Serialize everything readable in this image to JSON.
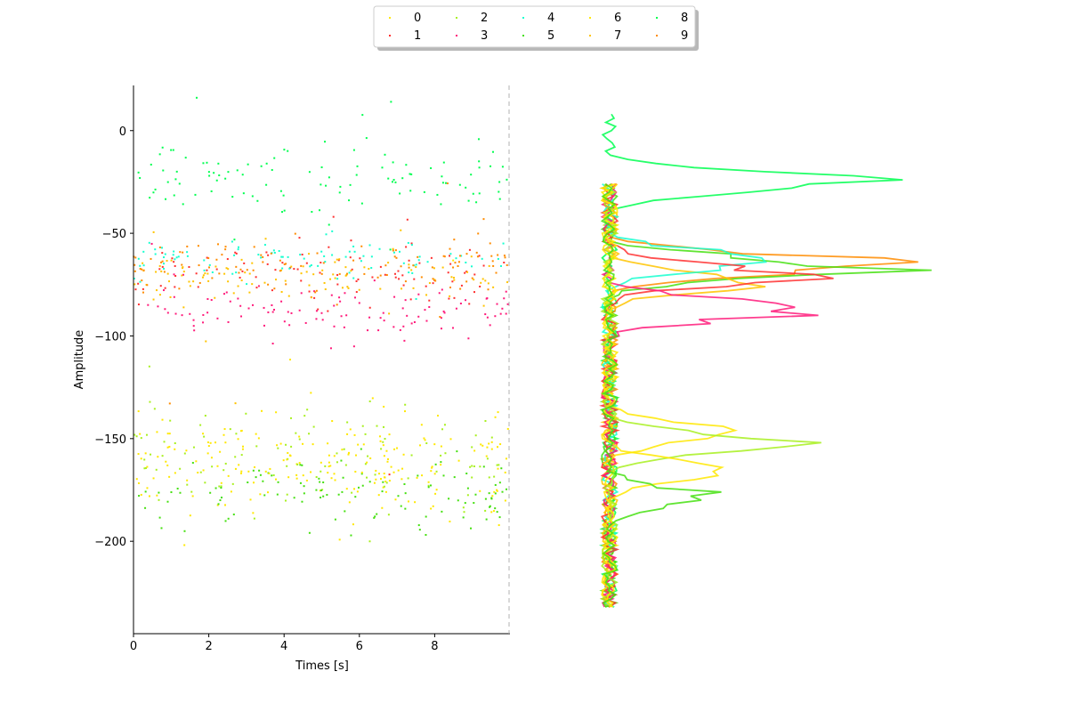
{
  "chart_data": [
    {
      "type": "scatter",
      "xlabel": "Times [s]",
      "ylabel": "Amplitude",
      "xlim": [
        0,
        10
      ],
      "ylim": [
        -245,
        22
      ],
      "xticks": [
        "0",
        "2",
        "4",
        "6",
        "8"
      ],
      "yticks": [
        "0",
        "−50",
        "−100",
        "−150",
        "−200"
      ],
      "vertical_dashed_line_x": 10,
      "series": [
        {
          "name": "0",
          "color": "#ffe800",
          "center": -165,
          "spread": 12,
          "count": 110
        },
        {
          "name": "1",
          "color": "#ff3030",
          "center": -70,
          "spread": 7,
          "count": 100
        },
        {
          "name": "2",
          "color": "#a8f020",
          "center": -160,
          "spread": 12,
          "count": 110
        },
        {
          "name": "3",
          "color": "#ff1a7a",
          "center": -88,
          "spread": 6,
          "count": 110
        },
        {
          "name": "4",
          "color": "#17ffd0",
          "center": -63,
          "spread": 5,
          "count": 90
        },
        {
          "name": "5",
          "color": "#45e010",
          "center": -178,
          "spread": 9,
          "count": 110
        },
        {
          "name": "6",
          "color": "#ffe800",
          "center": -158,
          "spread": 10,
          "count": 100
        },
        {
          "name": "7",
          "color": "#ffc400",
          "center": -72,
          "spread": 7,
          "count": 110
        },
        {
          "name": "8",
          "color": "#00ff50",
          "center": -24,
          "spread": 9,
          "count": 110
        },
        {
          "name": "9",
          "color": "#ff8c00",
          "center": -65,
          "spread": 6,
          "count": 110
        }
      ]
    },
    {
      "type": "line",
      "description_of_series": "histograms of amplitude per class (same classes and colors)",
      "ylim": [
        -245,
        22
      ],
      "peaks": [
        {
          "name": "8",
          "center": -25,
          "max": 1.0
        },
        {
          "name": "9",
          "center": -65,
          "max": 1.08
        },
        {
          "name": "5",
          "center": -67,
          "max": 1.07
        },
        {
          "name": "7",
          "center": -73,
          "max": 0.6
        },
        {
          "name": "4",
          "center": -63,
          "max": 0.6
        },
        {
          "name": "1",
          "center": -70,
          "max": 0.8
        },
        {
          "name": "3",
          "center": -87,
          "max": 0.82
        },
        {
          "name": "6",
          "center": -147,
          "max": 0.55
        },
        {
          "name": "2",
          "center": -152,
          "max": 0.68
        },
        {
          "name": "0",
          "center": -166,
          "max": 0.5
        },
        {
          "name": "5b",
          "center": -178,
          "max": 0.38
        }
      ]
    }
  ],
  "legend": {
    "placement": "top-center",
    "columns": 5,
    "entries": [
      {
        "label": "0",
        "color": "#ffe800"
      },
      {
        "label": "1",
        "color": "#ff3030"
      },
      {
        "label": "2",
        "color": "#a8f020"
      },
      {
        "label": "3",
        "color": "#ff1a7a"
      },
      {
        "label": "4",
        "color": "#17ffd0"
      },
      {
        "label": "5",
        "color": "#45e010"
      },
      {
        "label": "6",
        "color": "#ffe800"
      },
      {
        "label": "7",
        "color": "#ffc400"
      },
      {
        "label": "8",
        "color": "#00ff50"
      },
      {
        "label": "9",
        "color": "#ff8c00"
      }
    ]
  }
}
